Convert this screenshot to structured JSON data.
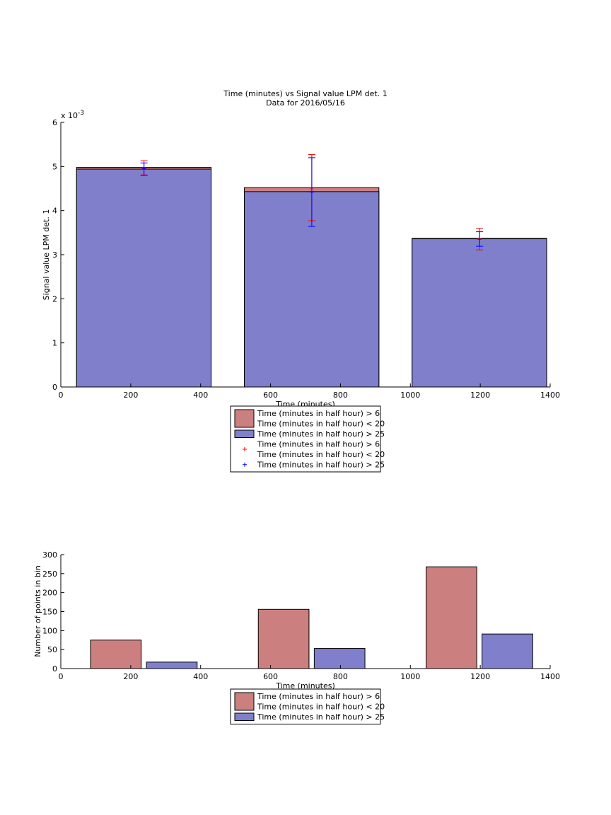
{
  "colors": {
    "red_fill": "#CC7F7F",
    "blue_fill": "#7F7FCC",
    "red_err": "#FF0000",
    "blue_err": "#0000FF"
  },
  "chart_data": [
    {
      "type": "bar",
      "title": "Time (minutes) vs Signal value LPM det. 1",
      "subtitle": "Data for 2016/05/16",
      "xlabel": "Time (minutes)",
      "ylabel": "Signal value LPM det. 1",
      "y_exponent_base": "x 10",
      "y_exponent_power": "-3",
      "xlim": [
        0,
        1400
      ],
      "ylim": [
        0,
        6
      ],
      "x_ticks": [
        "0",
        "200",
        "400",
        "600",
        "800",
        "1000",
        "1200",
        "1400"
      ],
      "y_ticks": [
        "0",
        "1",
        "2",
        "3",
        "4",
        "5",
        "6"
      ],
      "bars": [
        {
          "x_start": 45,
          "x_end": 430,
          "red": 4.98,
          "blue": 4.94
        },
        {
          "x_start": 525,
          "x_end": 910,
          "red": 4.52,
          "blue": 4.43
        },
        {
          "x_start": 1005,
          "x_end": 1390,
          "red": 3.37,
          "blue": 3.36
        }
      ],
      "errorbars": [
        {
          "series": "red",
          "x": 238,
          "y": 4.97,
          "low": 4.81,
          "high": 5.13
        },
        {
          "series": "blue",
          "x": 238,
          "y": 4.95,
          "low": 4.8,
          "high": 5.08
        },
        {
          "series": "red",
          "x": 718,
          "y": 4.51,
          "low": 3.77,
          "high": 5.27
        },
        {
          "series": "blue",
          "x": 718,
          "y": 4.42,
          "low": 3.64,
          "high": 5.2
        },
        {
          "series": "red",
          "x": 1198,
          "y": 3.36,
          "low": 3.11,
          "high": 3.6
        },
        {
          "series": "blue",
          "x": 1198,
          "y": 3.35,
          "low": 3.19,
          "high": 3.52
        }
      ],
      "legend": {
        "entries": [
          {
            "kind": "patch",
            "color": "red",
            "lines": [
              "Time (minutes in half hour) > 6",
              "Time (minutes in half hour) < 20"
            ]
          },
          {
            "kind": "patch",
            "color": "blue",
            "lines": [
              "Time (minutes in half hour) > 25"
            ]
          },
          {
            "kind": "marker",
            "color": "red",
            "lines": [
              "Time (minutes in half hour) > 6",
              "Time (minutes in half hour) < 20"
            ]
          },
          {
            "kind": "marker",
            "color": "blue",
            "lines": [
              "Time (minutes in half hour) > 25"
            ]
          }
        ],
        "placement": "below plot"
      }
    },
    {
      "type": "bar",
      "title": "",
      "xlabel": "Time (minutes)",
      "ylabel": "Number of points in bin",
      "xlim": [
        0,
        1400
      ],
      "ylim": [
        0,
        300
      ],
      "x_ticks": [
        "0",
        "200",
        "400",
        "600",
        "800",
        "1000",
        "1200",
        "1400"
      ],
      "y_ticks": [
        "0",
        "50",
        "100",
        "150",
        "200",
        "250",
        "300"
      ],
      "series": [
        {
          "color": "red",
          "bars": [
            {
              "x_start": 85,
              "x_end": 230,
              "value": 75
            },
            {
              "x_start": 565,
              "x_end": 710,
              "value": 156
            },
            {
              "x_start": 1045,
              "x_end": 1190,
              "value": 268
            }
          ]
        },
        {
          "color": "blue",
          "bars": [
            {
              "x_start": 245,
              "x_end": 390,
              "value": 17
            },
            {
              "x_start": 725,
              "x_end": 870,
              "value": 53
            },
            {
              "x_start": 1205,
              "x_end": 1350,
              "value": 91
            }
          ]
        }
      ],
      "legend": {
        "entries": [
          {
            "kind": "patch",
            "color": "red",
            "lines": [
              "Time (minutes in half hour) > 6",
              "Time (minutes in half hour) < 20"
            ]
          },
          {
            "kind": "patch",
            "color": "blue",
            "lines": [
              "Time (minutes in half hour) > 25"
            ]
          }
        ],
        "placement": "below plot"
      }
    }
  ]
}
